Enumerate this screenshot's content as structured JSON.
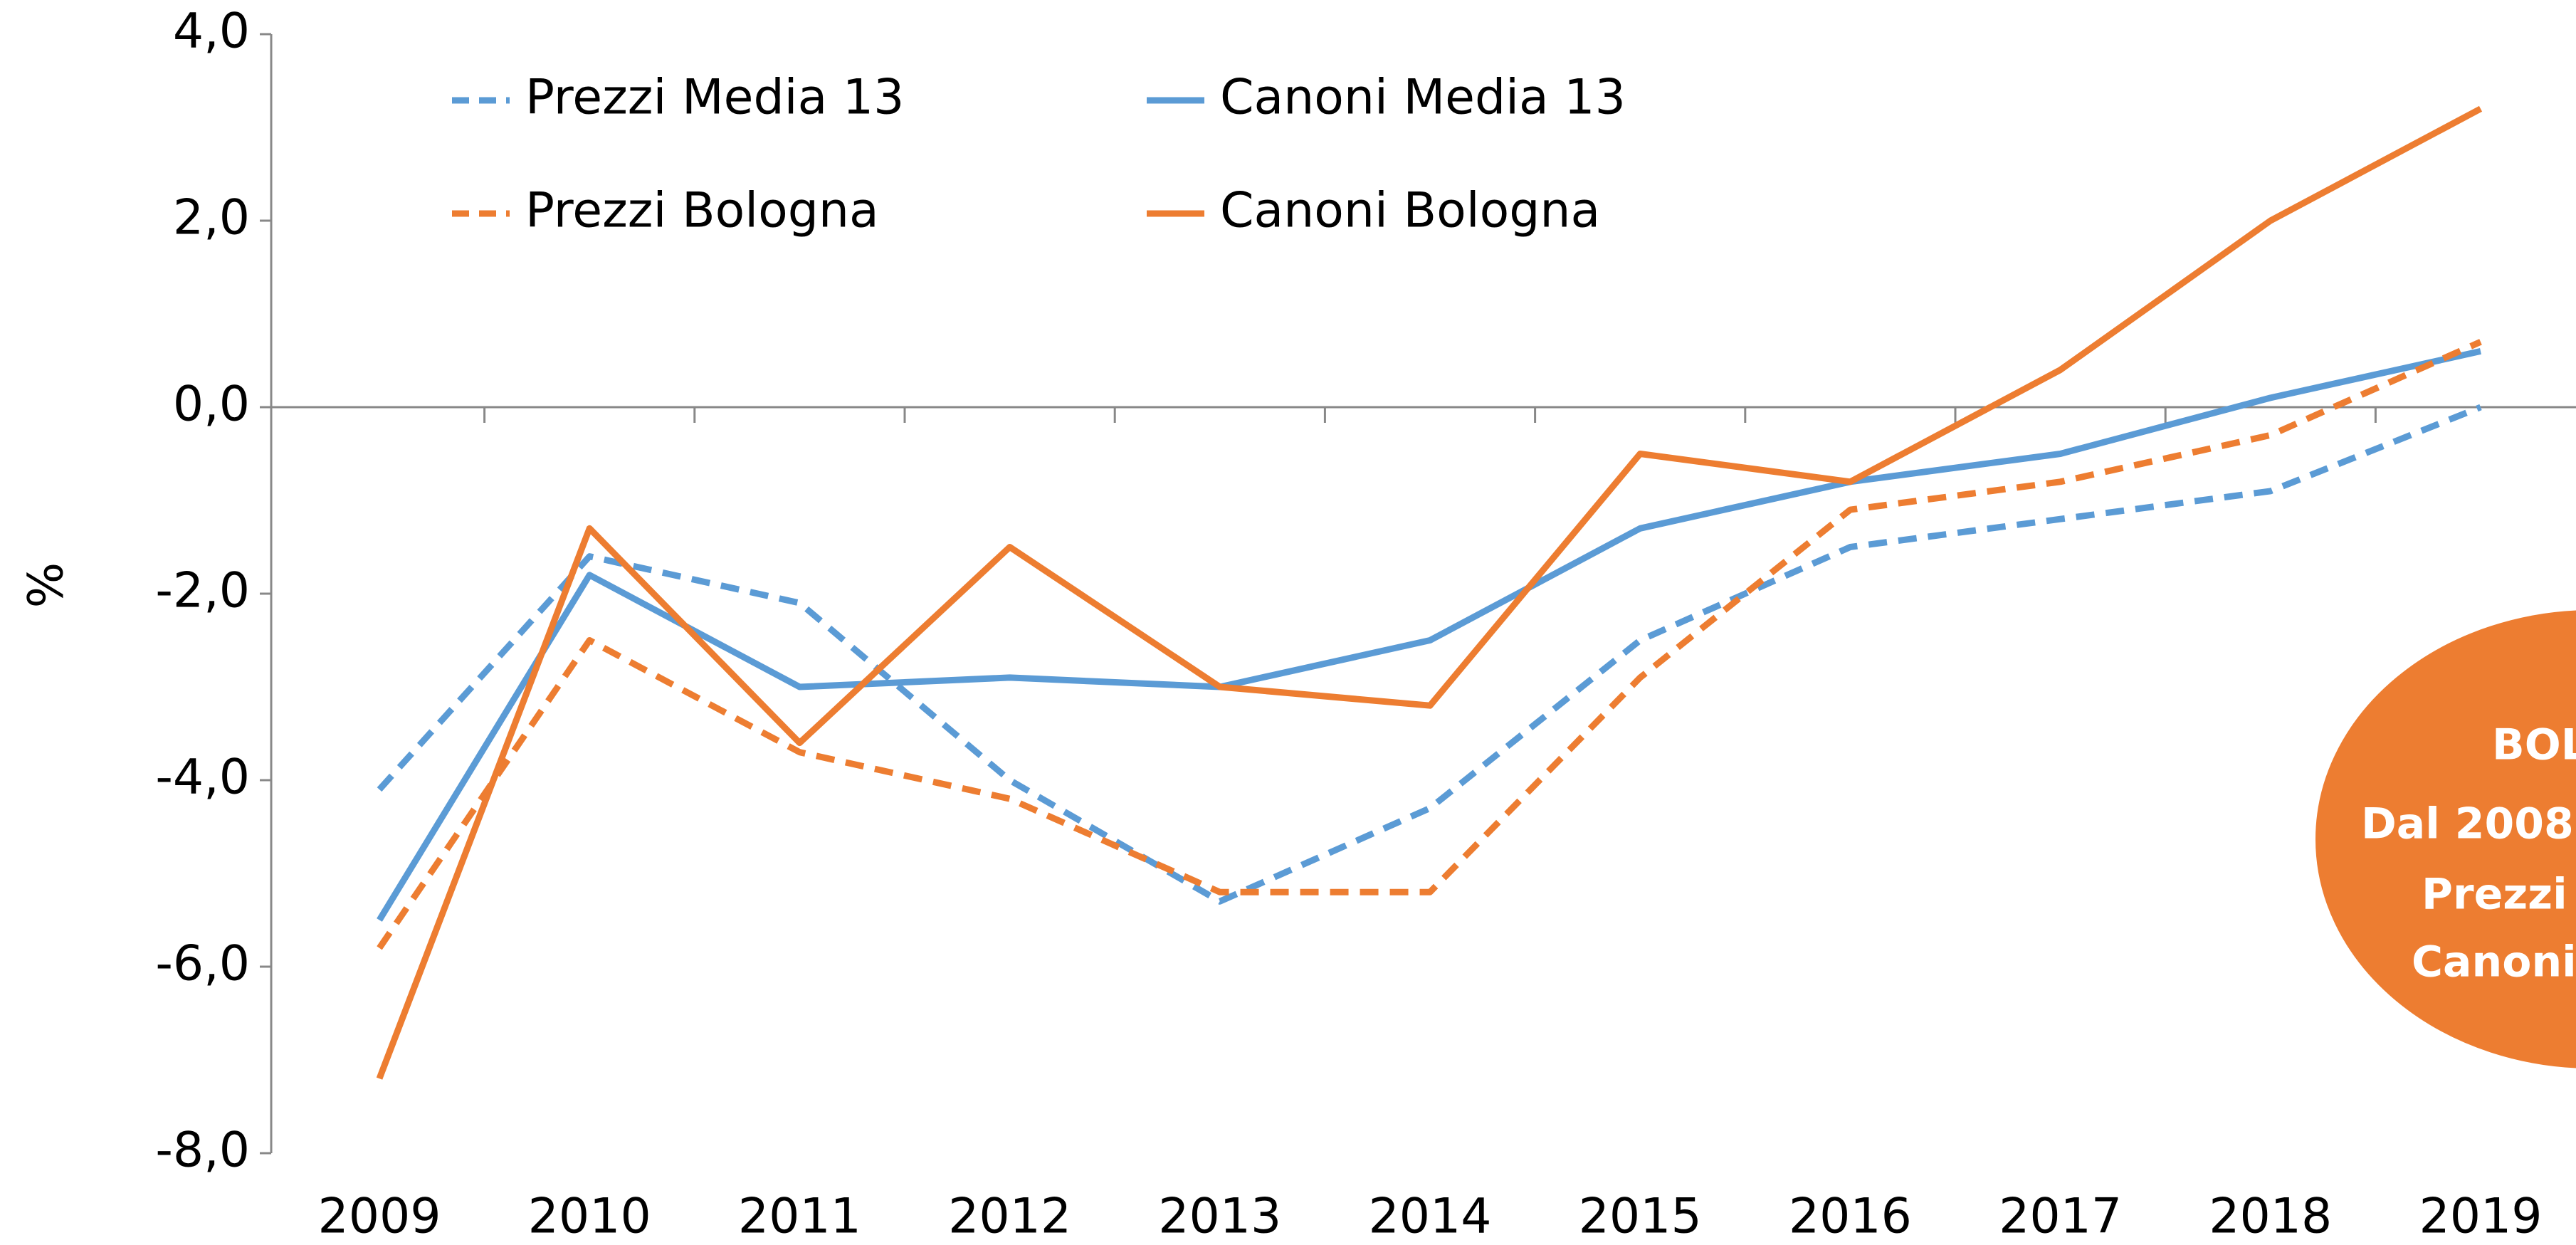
{
  "chart_data": {
    "type": "line",
    "y_label": "%",
    "categories": [
      "2009",
      "2010",
      "2011",
      "2012",
      "2013",
      "2014",
      "2015",
      "2016",
      "2017",
      "2018",
      "2019"
    ],
    "series": [
      {
        "name": "Prezzi Media 13",
        "color": "#5b9bd5",
        "dashed": true,
        "values": [
          -4.1,
          -1.6,
          -2.1,
          -4.0,
          -5.3,
          -4.3,
          -2.5,
          -1.5,
          -1.2,
          -0.9,
          0.0
        ]
      },
      {
        "name": "Canoni Media 13",
        "color": "#5b9bd5",
        "dashed": false,
        "values": [
          -5.5,
          -1.8,
          -3.0,
          -2.9,
          -3.0,
          -2.5,
          -1.3,
          -0.8,
          -0.5,
          0.1,
          0.6
        ]
      },
      {
        "name": "Prezzi Bologna",
        "color": "#ed7d31",
        "dashed": true,
        "values": [
          -5.8,
          -2.5,
          -3.7,
          -4.2,
          -5.2,
          -5.2,
          -2.9,
          -1.1,
          -0.8,
          -0.3,
          0.7
        ]
      },
      {
        "name": "Canoni Bologna",
        "color": "#ed7d31",
        "dashed": false,
        "values": [
          -7.2,
          -1.3,
          -3.6,
          -1.5,
          -3.0,
          -3.2,
          -0.5,
          -0.8,
          0.4,
          2.0,
          3.2
        ]
      }
    ],
    "ylim": [
      -8,
      4
    ],
    "yticks": [
      {
        "value": -8,
        "label": "-8,0"
      },
      {
        "value": -6,
        "label": "-6,0"
      },
      {
        "value": -4,
        "label": "-4,0"
      },
      {
        "value": -2,
        "label": "-2,0"
      },
      {
        "value": 0,
        "label": "0,0"
      },
      {
        "value": 2,
        "label": "2,0"
      },
      {
        "value": 4,
        "label": "4,0"
      }
    ],
    "grid": false,
    "callout": {
      "color": "#ed7d31",
      "lines": [
        "BOLO",
        "Dal 2008",
        "Prezzi",
        "Canoni"
      ]
    }
  }
}
